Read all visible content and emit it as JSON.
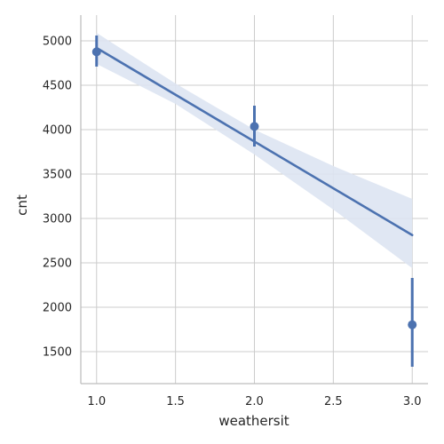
{
  "chart_data": {
    "type": "scatter",
    "xlabel": "weathersit",
    "ylabel": "cnt",
    "xlim": [
      0.9,
      3.1
    ],
    "ylim": [
      1140,
      5290
    ],
    "x_ticks": [
      1.0,
      1.5,
      2.0,
      2.5,
      3.0
    ],
    "x_tick_labels": [
      "1.0",
      "1.5",
      "2.0",
      "2.5",
      "3.0"
    ],
    "y_ticks": [
      1500,
      2000,
      2500,
      3000,
      3500,
      4000,
      4500,
      5000
    ],
    "y_tick_labels": [
      "1500",
      "2000",
      "2500",
      "3000",
      "3500",
      "4000",
      "4500",
      "5000"
    ],
    "grid": true,
    "points": [
      {
        "x": 1.0,
        "y": 4876,
        "ci": [
          4710,
          5060
        ]
      },
      {
        "x": 2.0,
        "y": 4036,
        "ci": [
          3810,
          4270
        ]
      },
      {
        "x": 3.0,
        "y": 1803,
        "ci": [
          1330,
          2330
        ]
      }
    ],
    "regression_line": [
      {
        "x": 1.0,
        "y": 4920
      },
      {
        "x": 3.0,
        "y": 2813
      }
    ],
    "confidence_band": {
      "x": [
        1.0,
        1.5,
        2.0,
        2.5,
        3.0
      ],
      "lower": [
        4740,
        4290,
        3720,
        3100,
        2440
      ],
      "upper": [
        5090,
        4520,
        4000,
        3590,
        3220
      ]
    },
    "colors": {
      "series": "#4c72b0",
      "band": "#dde4f2",
      "grid": "#cccccc",
      "axis": "#bdbdbd"
    }
  }
}
